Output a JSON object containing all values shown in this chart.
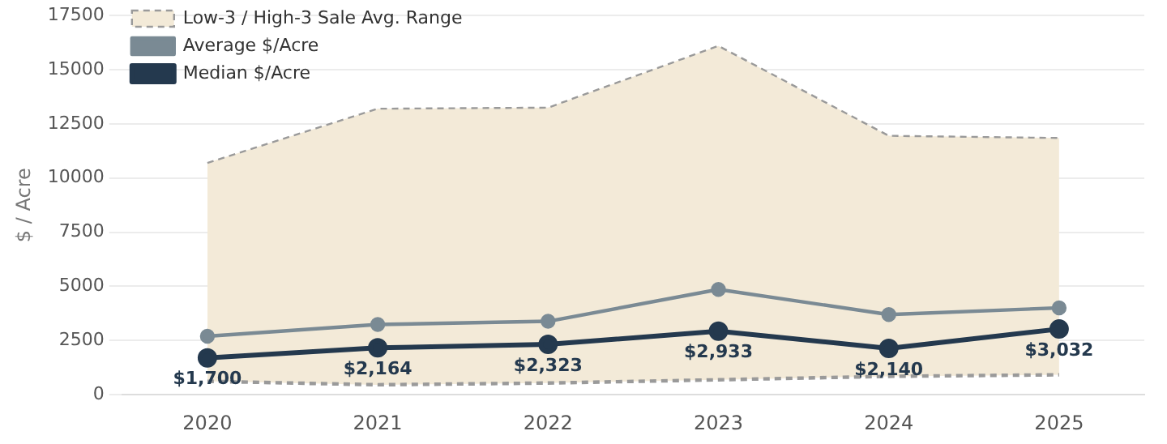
{
  "chart_data": {
    "type": "line",
    "ylabel": "$ / Acre",
    "categories": [
      "2020",
      "2021",
      "2022",
      "2023",
      "2024",
      "2025"
    ],
    "ylim": [
      0,
      17500
    ],
    "yticks": [
      0,
      2500,
      5000,
      7500,
      10000,
      12500,
      15000,
      17500
    ],
    "grid": "y",
    "legend": "top left",
    "marker": "circle",
    "series": [
      {
        "name": "Low-3 / High-3 Sale Avg. Range",
        "type": "area",
        "color": "#f3ead8",
        "line_style": "dashed",
        "marker": "none",
        "values": [
          10700,
          13200,
          13250,
          16100,
          11950,
          11850
        ]
      },
      {
        "type": "line",
        "color": "#9a9a9a",
        "line_style": "dashed",
        "marker": "none",
        "values": [
          620,
          460,
          540,
          690,
          850,
          920
        ]
      },
      {
        "name": "Average $/Acre",
        "color": "#7a8a94",
        "values": [
          2700,
          3240,
          3390,
          4860,
          3700,
          4010
        ]
      },
      {
        "name": "Median $/Acre",
        "color": "#24394e",
        "values": [
          1700,
          2164,
          2323,
          2933,
          2140,
          3032
        ],
        "value_labels": [
          "$1,700",
          "$2,164",
          "$2,323",
          "$2,933",
          "$2,140",
          "$3,032"
        ]
      }
    ]
  }
}
